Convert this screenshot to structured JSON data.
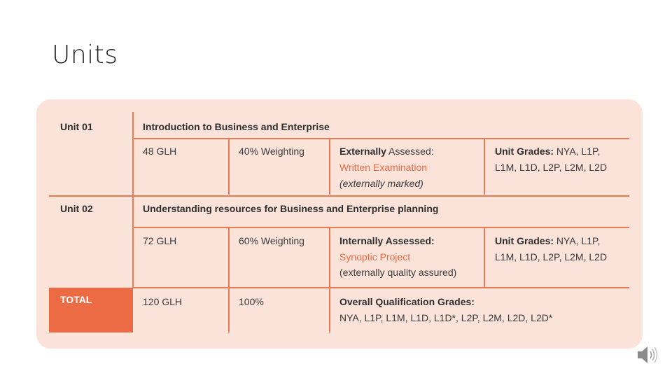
{
  "slide": {
    "title": "Units"
  },
  "table": {
    "unit1": {
      "label": "Unit 01",
      "title": "Introduction to Business and Enterprise",
      "glh": "48 GLH",
      "weighting": "40% Weighting",
      "assessment_label": "Externally",
      "assessment_rest": " Assessed:",
      "assessment_type": "Written Examination",
      "assessment_note": "(externally marked)",
      "grades_label": "Unit Grades:",
      "grades_line1": " NYA, L1P,",
      "grades_line2": "L1M, L1D, L2P, L2M, L2D"
    },
    "unit2": {
      "label": "Unit 02",
      "title": "Understanding resources for Business and Enterprise planning",
      "glh": "72 GLH",
      "weighting": "60% Weighting",
      "assessment_label": "Internally Assessed:",
      "assessment_type": "Synoptic Project",
      "assessment_note": "(externally quality assured)",
      "grades_label": "Unit Grades:",
      "grades_line1": " NYA, L1P,",
      "grades_line2": "L1M, L1D, L2P, L2M, L2D"
    },
    "total": {
      "label": "TOTAL",
      "glh": "120 GLH",
      "percent": "100%",
      "grades_label": "Overall Qualification Grades:",
      "grades_values": "NYA, L1P, L1M, L1D, L1D*, L2P, L2M, L2D, L2D*"
    }
  },
  "colors": {
    "accent": "#ec6b45",
    "card_background": "#fbe3d9"
  },
  "icons": {
    "audio": "speaker-icon"
  }
}
